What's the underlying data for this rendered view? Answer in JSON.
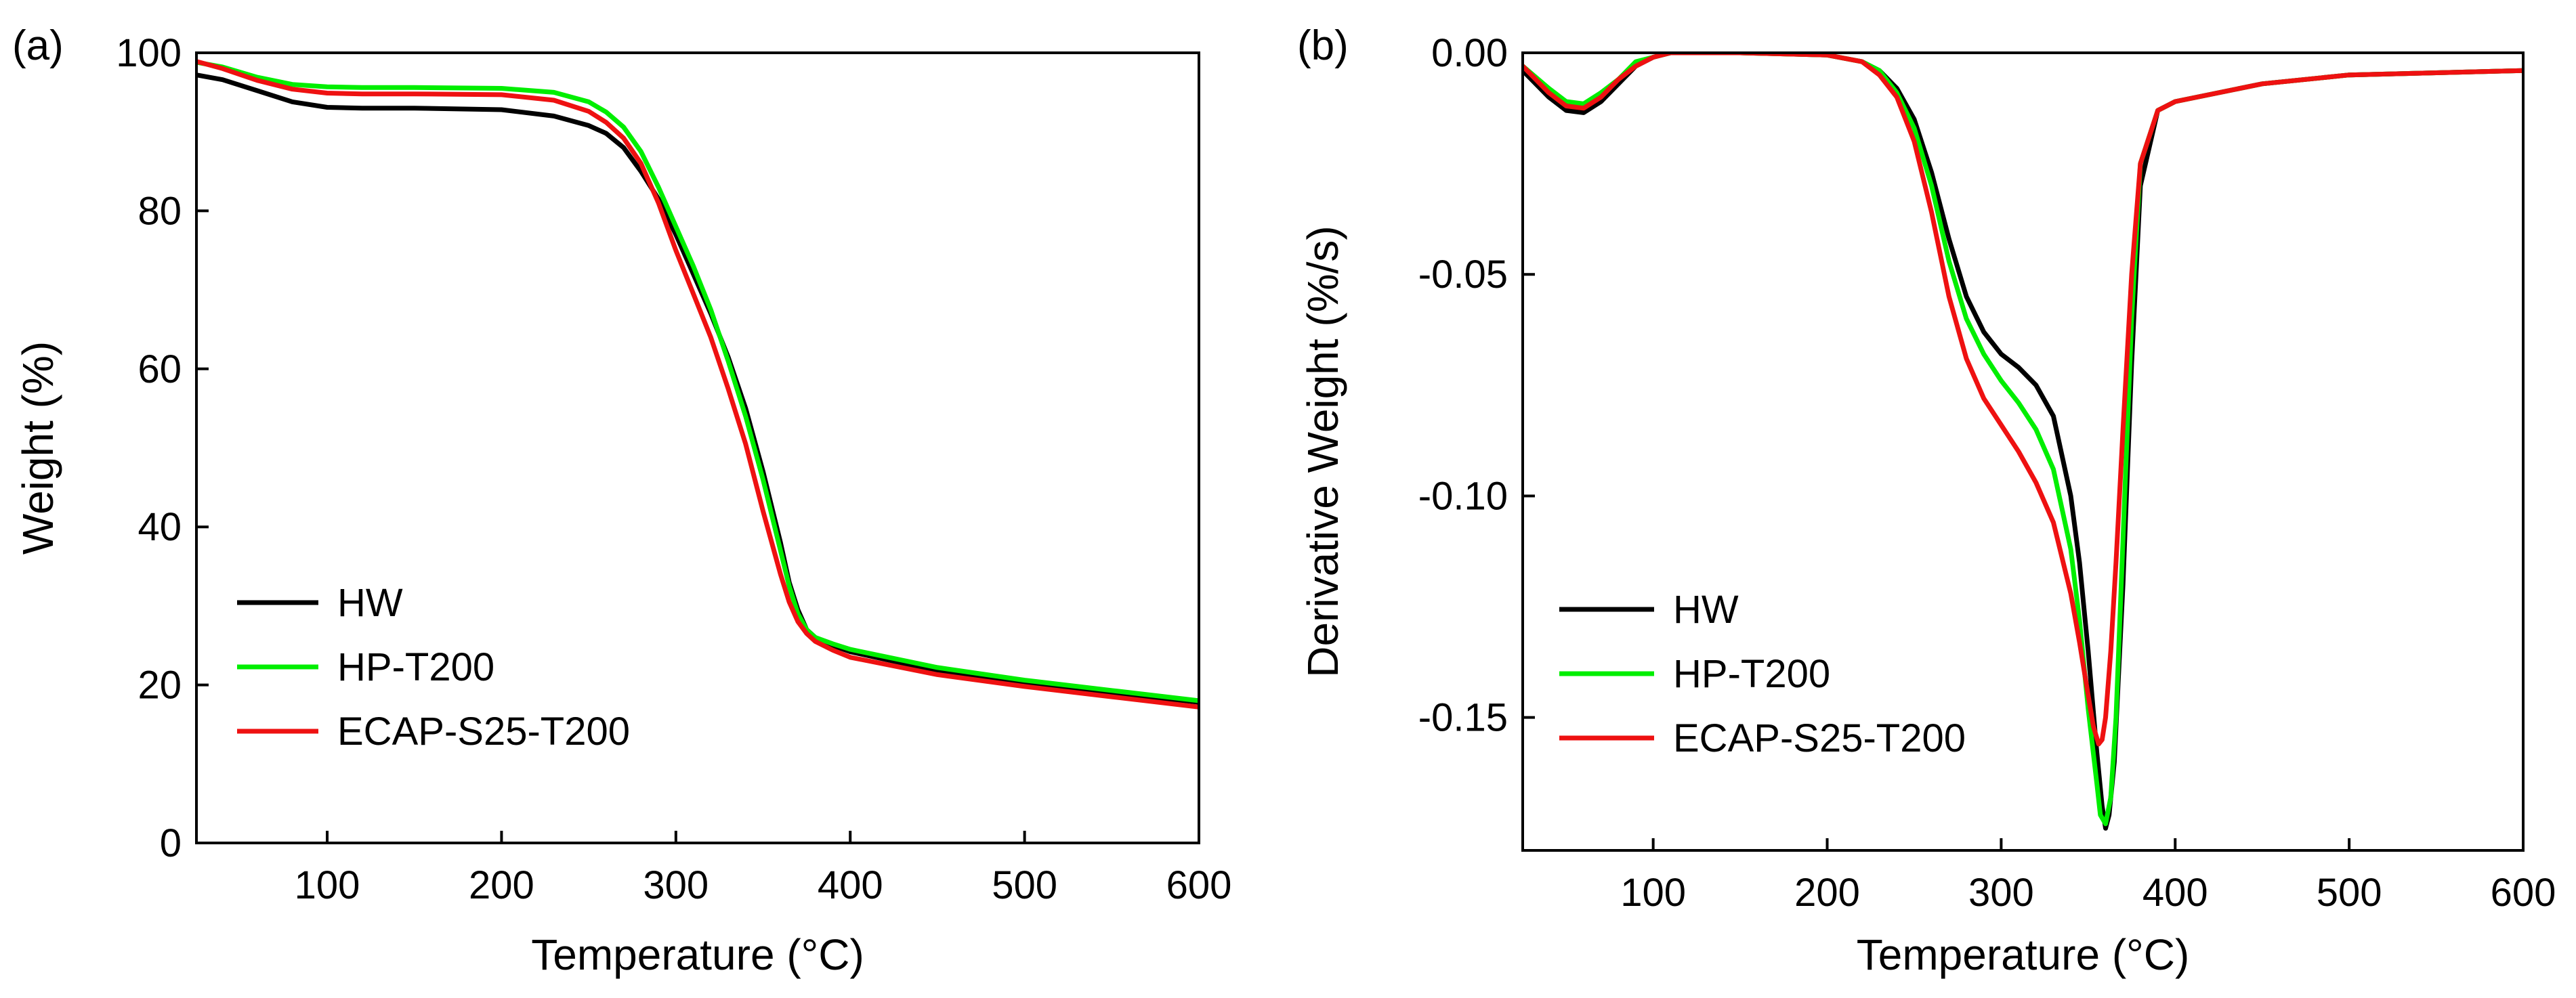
{
  "figure": {
    "panels": [
      "(a)",
      "(b)"
    ]
  },
  "chart_data": [
    {
      "type": "line",
      "panel_label": "(a)",
      "title": "",
      "xlabel": "Temperature (°C)",
      "ylabel": "Weight (%)",
      "xlim": [
        25,
        600
      ],
      "ylim": [
        0,
        100
      ],
      "xticks": [
        100,
        200,
        300,
        400,
        500,
        600
      ],
      "yticks": [
        0,
        20,
        40,
        60,
        80,
        100
      ],
      "grid": false,
      "legend_position": "bottom-left",
      "series": [
        {
          "name": "HW",
          "color": "#000000",
          "x": [
            25,
            40,
            60,
            80,
            100,
            120,
            150,
            200,
            230,
            250,
            260,
            270,
            280,
            290,
            300,
            310,
            320,
            330,
            340,
            350,
            360,
            365,
            370,
            375,
            380,
            390,
            400,
            450,
            500,
            550,
            600
          ],
          "y": [
            97.2,
            96.6,
            95.2,
            93.8,
            93.1,
            93.0,
            93.0,
            92.8,
            92.0,
            90.8,
            89.8,
            88.0,
            85.0,
            81.5,
            77.0,
            72.0,
            67.0,
            61.5,
            55.0,
            47.0,
            38.0,
            33.0,
            29.5,
            27.0,
            26.0,
            25.0,
            24.2,
            21.8,
            20.3,
            19.0,
            17.8
          ]
        },
        {
          "name": "HP-T200",
          "color": "#00ee00",
          "x": [
            25,
            40,
            60,
            80,
            100,
            120,
            150,
            200,
            230,
            250,
            260,
            270,
            280,
            290,
            300,
            310,
            320,
            330,
            340,
            350,
            360,
            365,
            370,
            375,
            380,
            390,
            400,
            450,
            500,
            550,
            600
          ],
          "y": [
            98.8,
            98.2,
            96.9,
            96.0,
            95.7,
            95.6,
            95.6,
            95.5,
            95.0,
            93.8,
            92.5,
            90.6,
            87.5,
            83.0,
            78.0,
            73.0,
            67.5,
            61.0,
            54.0,
            46.0,
            37.0,
            32.5,
            29.0,
            27.0,
            26.0,
            25.2,
            24.5,
            22.2,
            20.6,
            19.3,
            18.0
          ]
        },
        {
          "name": "ECAP-S25-T200",
          "color": "#ee1111",
          "x": [
            25,
            40,
            60,
            80,
            100,
            120,
            150,
            200,
            230,
            250,
            260,
            270,
            280,
            290,
            300,
            310,
            320,
            330,
            340,
            350,
            360,
            365,
            370,
            375,
            380,
            390,
            400,
            450,
            500,
            550,
            600
          ],
          "y": [
            98.9,
            98.0,
            96.5,
            95.4,
            94.9,
            94.8,
            94.8,
            94.7,
            94.0,
            92.6,
            91.2,
            89.2,
            86.0,
            81.0,
            75.0,
            69.5,
            64.0,
            57.5,
            50.5,
            42.0,
            34.0,
            30.5,
            28.0,
            26.5,
            25.5,
            24.4,
            23.5,
            21.3,
            19.8,
            18.5,
            17.2
          ]
        }
      ]
    },
    {
      "type": "line",
      "panel_label": "(b)",
      "title": "",
      "xlabel": "Temperature (°C)",
      "ylabel": "Derivative Weight (%/s)",
      "xlim": [
        25,
        600
      ],
      "ylim": [
        -0.18,
        0.0
      ],
      "xticks": [
        100,
        200,
        300,
        400,
        500,
        600
      ],
      "yticks": [
        0.0,
        -0.05,
        -0.1,
        -0.15
      ],
      "ytick_labels": [
        "0.00",
        "-0.05",
        "-0.10",
        "-0.15"
      ],
      "grid": false,
      "legend_position": "bottom-left",
      "series": [
        {
          "name": "HW",
          "color": "#000000",
          "x": [
            25,
            40,
            50,
            60,
            70,
            80,
            90,
            100,
            110,
            150,
            200,
            220,
            230,
            240,
            250,
            260,
            270,
            280,
            290,
            300,
            310,
            320,
            330,
            340,
            345,
            350,
            355,
            358,
            360,
            362,
            365,
            370,
            375,
            380,
            390,
            400,
            450,
            500,
            550,
            600
          ],
          "y": [
            -0.004,
            -0.01,
            -0.013,
            -0.0135,
            -0.011,
            -0.007,
            -0.003,
            -0.001,
            0.0,
            0.0,
            -0.0005,
            -0.002,
            -0.004,
            -0.008,
            -0.015,
            -0.027,
            -0.042,
            -0.055,
            -0.063,
            -0.068,
            -0.071,
            -0.075,
            -0.082,
            -0.1,
            -0.115,
            -0.135,
            -0.158,
            -0.17,
            -0.175,
            -0.172,
            -0.16,
            -0.12,
            -0.07,
            -0.03,
            -0.013,
            -0.011,
            -0.007,
            -0.005,
            -0.0045,
            -0.004
          ]
        },
        {
          "name": "HP-T200",
          "color": "#00ee00",
          "x": [
            25,
            40,
            50,
            60,
            70,
            80,
            90,
            100,
            110,
            150,
            200,
            220,
            230,
            240,
            250,
            260,
            270,
            280,
            290,
            300,
            310,
            320,
            330,
            340,
            345,
            350,
            355,
            357,
            360,
            363,
            366,
            370,
            375,
            380,
            390,
            400,
            450,
            500,
            550,
            600
          ],
          "y": [
            -0.003,
            -0.008,
            -0.011,
            -0.0115,
            -0.009,
            -0.006,
            -0.002,
            -0.001,
            0.0,
            0.0,
            -0.0005,
            -0.002,
            -0.004,
            -0.009,
            -0.017,
            -0.03,
            -0.047,
            -0.06,
            -0.068,
            -0.074,
            -0.079,
            -0.085,
            -0.094,
            -0.112,
            -0.128,
            -0.148,
            -0.165,
            -0.172,
            -0.174,
            -0.168,
            -0.15,
            -0.11,
            -0.06,
            -0.025,
            -0.013,
            -0.011,
            -0.007,
            -0.005,
            -0.0045,
            -0.004
          ]
        },
        {
          "name": "ECAP-S25-T200",
          "color": "#ee1111",
          "x": [
            25,
            40,
            50,
            60,
            70,
            80,
            90,
            100,
            110,
            150,
            200,
            220,
            230,
            240,
            250,
            260,
            270,
            280,
            290,
            300,
            310,
            320,
            330,
            340,
            345,
            350,
            353,
            356,
            358,
            360,
            363,
            366,
            370,
            375,
            380,
            390,
            400,
            450,
            500,
            550,
            600
          ],
          "y": [
            -0.003,
            -0.009,
            -0.012,
            -0.0125,
            -0.01,
            -0.006,
            -0.003,
            -0.001,
            0.0,
            0.0,
            -0.0005,
            -0.002,
            -0.005,
            -0.01,
            -0.02,
            -0.036,
            -0.055,
            -0.069,
            -0.078,
            -0.084,
            -0.09,
            -0.097,
            -0.106,
            -0.122,
            -0.133,
            -0.145,
            -0.152,
            -0.156,
            -0.155,
            -0.15,
            -0.135,
            -0.115,
            -0.085,
            -0.05,
            -0.025,
            -0.013,
            -0.011,
            -0.007,
            -0.005,
            -0.0045,
            -0.004
          ]
        }
      ]
    }
  ]
}
